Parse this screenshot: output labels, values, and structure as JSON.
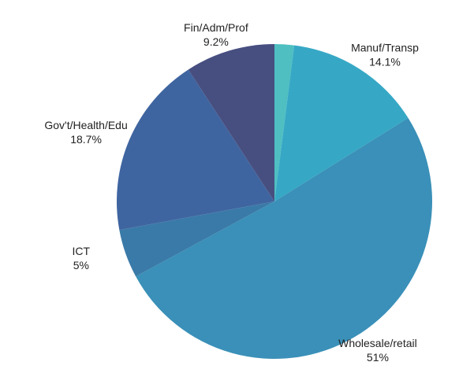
{
  "chart_data": {
    "type": "pie",
    "categories": [
      null,
      "Manuf/Transp",
      "Wholesale/retail",
      "ICT",
      "Gov't/Health/Edu",
      "Fin/Adm/Prof"
    ],
    "values": [
      2,
      14.1,
      51,
      5,
      18.7,
      9.2
    ],
    "value_labels": [
      null,
      "14.1%",
      "51%",
      "5%",
      "18.7%",
      "9.2%"
    ],
    "colors": [
      "#4fbfc1",
      "#36a8c5",
      "#3a90b8",
      "#3a7aa8",
      "#3f65a0",
      "#474f80"
    ]
  }
}
